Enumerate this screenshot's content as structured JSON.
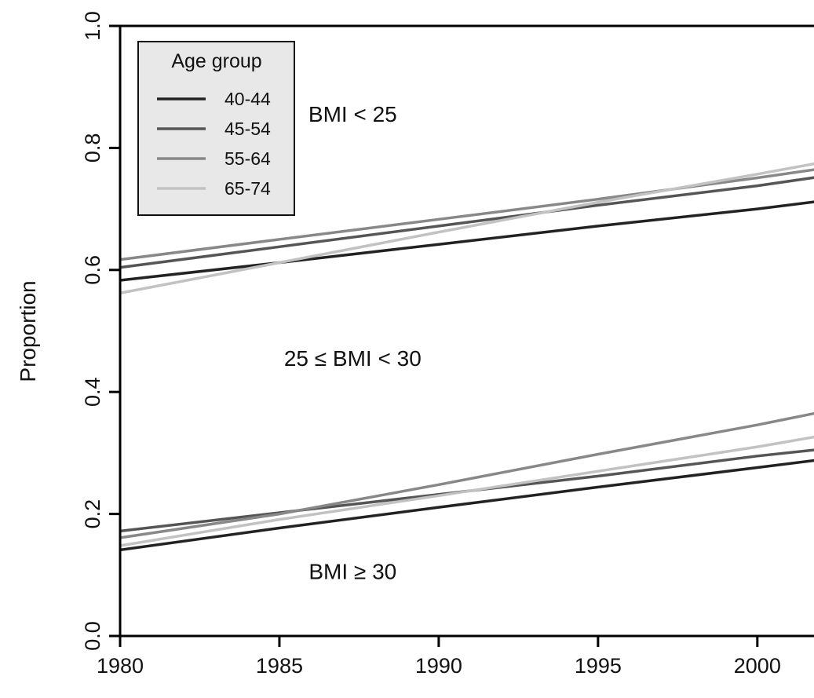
{
  "chart_data": {
    "type": "line",
    "title": "",
    "xlabel": "",
    "ylabel": "Proportion",
    "xlim": [
      1980,
      2002
    ],
    "ylim": [
      0.0,
      1.0
    ],
    "xticks": [
      1980,
      1985,
      1990,
      1995,
      2000
    ],
    "xtick_labels": [
      "1980",
      "1985",
      "1990",
      "1995",
      "2000"
    ],
    "yticks": [
      0.0,
      0.2,
      0.4,
      0.6,
      0.8,
      1.0
    ],
    "ytick_labels": [
      "0.0",
      "0.2",
      "0.4",
      "0.6",
      "0.8",
      "1.0"
    ],
    "grid": false,
    "legend": {
      "title": "Age group",
      "position": "top-left",
      "entries": [
        "40-44",
        "45-54",
        "55-64",
        "65-74"
      ]
    },
    "annotations": [
      {
        "text": "BMI < 25",
        "x": 1987.3,
        "y": 0.843
      },
      {
        "text": "25 ≤ BMI < 30",
        "x": 1987.3,
        "y": 0.443
      },
      {
        "text": "BMI ≥ 30",
        "x": 1987.3,
        "y": 0.093
      }
    ],
    "series": [
      {
        "name": "40-44",
        "color": "#222222",
        "group": "upper",
        "x": [
          1980,
          1985,
          1990,
          1995,
          2000,
          2002
        ],
        "y": [
          0.583,
          0.612,
          0.642,
          0.672,
          0.7,
          0.713
        ]
      },
      {
        "name": "45-54",
        "color": "#555555",
        "group": "upper",
        "x": [
          1980,
          1985,
          1990,
          1995,
          2000,
          2002
        ],
        "y": [
          0.604,
          0.638,
          0.672,
          0.706,
          0.738,
          0.753
        ]
      },
      {
        "name": "55-64",
        "color": "#888888",
        "group": "upper",
        "x": [
          1980,
          1985,
          1990,
          1995,
          2000,
          2002
        ],
        "y": [
          0.617,
          0.65,
          0.683,
          0.716,
          0.751,
          0.766
        ]
      },
      {
        "name": "65-74",
        "color": "#c2c2c2",
        "group": "upper",
        "x": [
          1980,
          1985,
          1990,
          1995,
          2000,
          2002
        ],
        "y": [
          0.562,
          0.612,
          0.662,
          0.711,
          0.757,
          0.776
        ]
      },
      {
        "name": "40-44",
        "color": "#222222",
        "group": "lower",
        "x": [
          1980,
          1985,
          1990,
          1995,
          2000,
          2002
        ],
        "y": [
          0.141,
          0.177,
          0.211,
          0.244,
          0.276,
          0.289
        ]
      },
      {
        "name": "45-54",
        "color": "#555555",
        "group": "lower",
        "x": [
          1980,
          1985,
          1990,
          1995,
          2000,
          2002
        ],
        "y": [
          0.172,
          0.202,
          0.232,
          0.262,
          0.295,
          0.306
        ]
      },
      {
        "name": "55-64",
        "color": "#888888",
        "group": "lower",
        "x": [
          1980,
          1985,
          1990,
          1995,
          2000,
          2002
        ],
        "y": [
          0.161,
          0.2,
          0.248,
          0.298,
          0.346,
          0.367
        ]
      },
      {
        "name": "65-74",
        "color": "#c2c2c2",
        "group": "lower",
        "x": [
          1980,
          1985,
          1990,
          1995,
          2000,
          2002
        ],
        "y": [
          0.148,
          0.191,
          0.23,
          0.27,
          0.31,
          0.328
        ]
      }
    ]
  }
}
